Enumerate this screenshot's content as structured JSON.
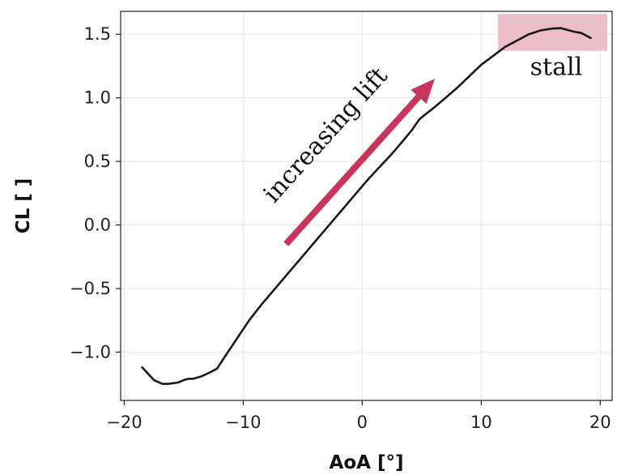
{
  "chart_data": {
    "type": "line",
    "title": "",
    "xlabel": "AoA [°]",
    "ylabel": "CL [ ]",
    "xlim": [
      -20.3,
      21
    ],
    "ylim": [
      -1.38,
      1.68
    ],
    "x_ticks": [
      -20,
      -10,
      0,
      10,
      20
    ],
    "x_tick_labels": [
      "−20",
      "−10",
      "0",
      "10",
      "20"
    ],
    "y_ticks": [
      -1.0,
      -0.5,
      0.0,
      0.5,
      1.0,
      1.5
    ],
    "y_tick_labels": [
      "−1.0",
      "−0.5",
      "0.0",
      "0.5",
      "1.0",
      "1.5"
    ],
    "grid": true,
    "line_color": "#1a1a1a",
    "series": [
      {
        "name": "",
        "x": [
          -18.5,
          -17.5,
          -16.8,
          -16.3,
          -15.5,
          -15.0,
          -14.6,
          -14.2,
          -13.5,
          -12.8,
          -12.2,
          -11.5,
          -10.5,
          -9.5,
          -8.5,
          -7.5,
          -6.5,
          -5.5,
          -4.5,
          -3.5,
          -2.5,
          -1.5,
          -0.5,
          0.5,
          1.5,
          2.5,
          3.5,
          4.2,
          4.8,
          5.3,
          6.0,
          7.0,
          8.0,
          9.0,
          10.0,
          11.0,
          12.0,
          13.0,
          14.0,
          15.0,
          16.0,
          16.7,
          17.2,
          17.8,
          18.4,
          19.2
        ],
        "y": [
          -1.12,
          -1.22,
          -1.25,
          -1.25,
          -1.24,
          -1.22,
          -1.21,
          -1.21,
          -1.19,
          -1.16,
          -1.13,
          -1.03,
          -0.89,
          -0.75,
          -0.63,
          -0.52,
          -0.41,
          -0.3,
          -0.19,
          -0.08,
          0.03,
          0.14,
          0.25,
          0.36,
          0.46,
          0.56,
          0.67,
          0.75,
          0.83,
          0.87,
          0.92,
          1.0,
          1.08,
          1.17,
          1.26,
          1.33,
          1.4,
          1.45,
          1.5,
          1.53,
          1.545,
          1.548,
          1.535,
          1.52,
          1.51,
          1.47
        ]
      }
    ],
    "annotations": {
      "arrow_label": "increasing lift",
      "arrow_color": "#c8345a",
      "arrow_from": [
        -6.4,
        -0.15
      ],
      "arrow_to": [
        6.1,
        1.15
      ],
      "region_label": "stall",
      "region_color": "#e9b3c0",
      "region_x": [
        11.4,
        20.6
      ],
      "region_y": [
        1.37,
        1.66
      ]
    }
  }
}
